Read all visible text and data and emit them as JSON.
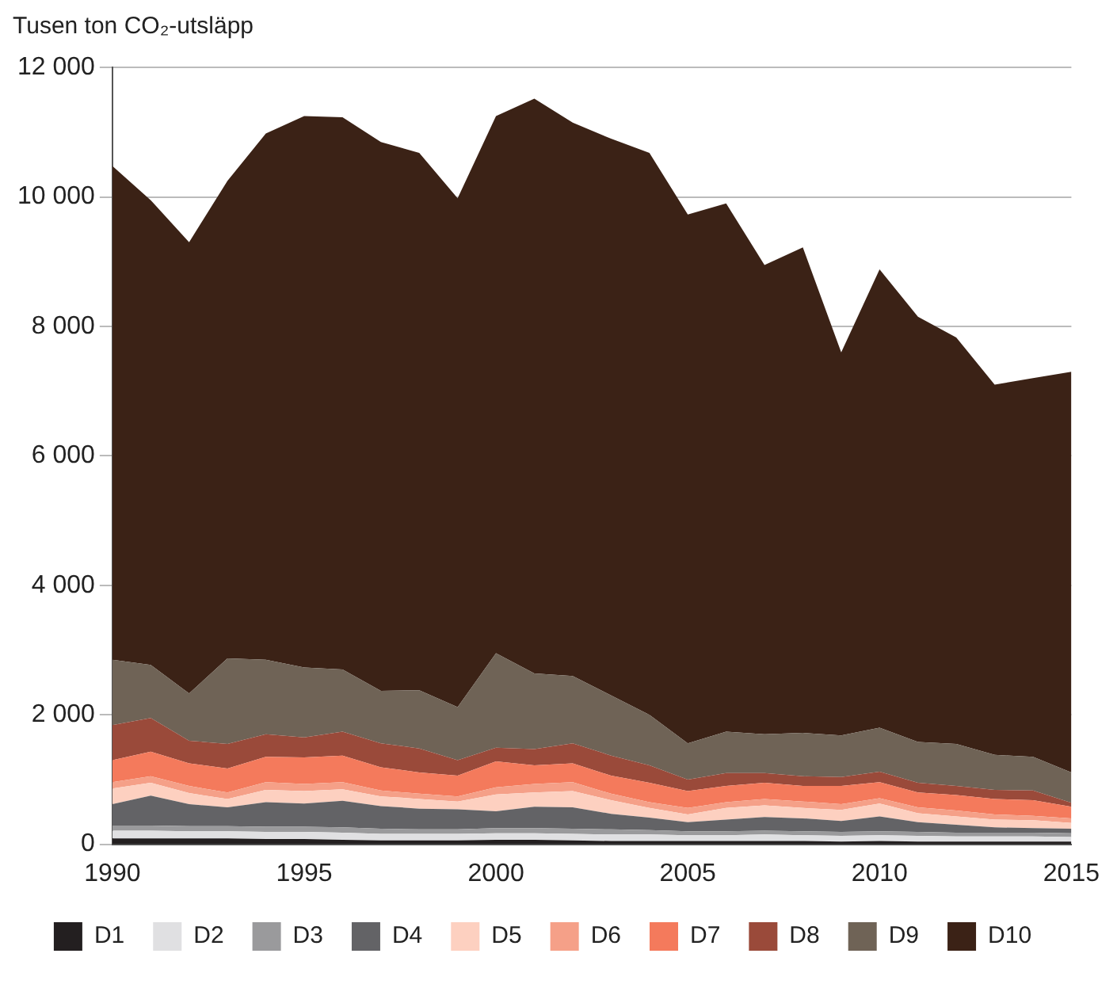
{
  "chart_data": {
    "type": "area",
    "ylabel": "Tusen ton CO₂-utsläpp",
    "stacked": true,
    "x": [
      1990,
      1991,
      1992,
      1993,
      1994,
      1995,
      1996,
      1997,
      1998,
      1999,
      2000,
      2001,
      2002,
      2003,
      2004,
      2005,
      2006,
      2007,
      2008,
      2009,
      2010,
      2011,
      2012,
      2013,
      2014,
      2015
    ],
    "series": [
      {
        "name": "D1",
        "color": "#231f20",
        "values": [
          90,
          90,
          90,
          90,
          80,
          80,
          70,
          60,
          60,
          60,
          70,
          70,
          60,
          50,
          50,
          50,
          50,
          50,
          50,
          40,
          50,
          40,
          40,
          40,
          40,
          40
        ]
      },
      {
        "name": "D2",
        "color": "#e0e0e2",
        "values": [
          120,
          120,
          110,
          110,
          110,
          110,
          110,
          100,
          100,
          100,
          100,
          100,
          100,
          100,
          100,
          90,
          90,
          100,
          90,
          90,
          90,
          90,
          80,
          80,
          80,
          70
        ]
      },
      {
        "name": "D3",
        "color": "#9a9a9c",
        "values": [
          80,
          80,
          80,
          80,
          80,
          80,
          80,
          80,
          70,
          70,
          80,
          80,
          80,
          80,
          70,
          60,
          60,
          60,
          60,
          60,
          60,
          60,
          60,
          60,
          60,
          60
        ]
      },
      {
        "name": "D4",
        "color": "#636366",
        "values": [
          330,
          460,
          340,
          290,
          380,
          360,
          410,
          350,
          320,
          310,
          260,
          330,
          330,
          240,
          190,
          140,
          180,
          210,
          200,
          170,
          230,
          150,
          120,
          80,
          70,
          70
        ]
      },
      {
        "name": "D5",
        "color": "#fdd0c0",
        "values": [
          240,
          200,
          170,
          130,
          190,
          190,
          180,
          150,
          150,
          120,
          260,
          220,
          250,
          210,
          150,
          120,
          180,
          180,
          160,
          170,
          200,
          140,
          130,
          120,
          120,
          90
        ]
      },
      {
        "name": "D6",
        "color": "#f5a088",
        "values": [
          100,
          100,
          110,
          100,
          120,
          110,
          110,
          90,
          80,
          80,
          110,
          130,
          140,
          100,
          90,
          100,
          90,
          100,
          100,
          90,
          80,
          90,
          90,
          80,
          70,
          70
        ]
      },
      {
        "name": "D7",
        "color": "#f47a5c",
        "values": [
          340,
          380,
          350,
          370,
          390,
          410,
          410,
          360,
          330,
          320,
          400,
          290,
          290,
          280,
          300,
          260,
          250,
          250,
          240,
          280,
          250,
          230,
          240,
          240,
          240,
          180
        ]
      },
      {
        "name": "D8",
        "color": "#9a4a3a",
        "values": [
          540,
          520,
          350,
          380,
          350,
          310,
          370,
          370,
          370,
          240,
          210,
          250,
          310,
          310,
          270,
          180,
          200,
          150,
          150,
          140,
          160,
          150,
          140,
          140,
          150,
          60
        ]
      },
      {
        "name": "D9",
        "color": "#6f6356",
        "values": [
          1010,
          820,
          730,
          1320,
          1150,
          1080,
          960,
          810,
          900,
          820,
          1460,
          1170,
          1040,
          930,
          780,
          560,
          640,
          600,
          670,
          640,
          680,
          630,
          650,
          540,
          520,
          470
        ]
      },
      {
        "name": "D10",
        "color": "#3b2216",
        "values": [
          7630,
          7180,
          6970,
          7380,
          8130,
          8520,
          8530,
          8480,
          8300,
          7860,
          8300,
          8880,
          8550,
          8600,
          8680,
          8170,
          8160,
          7250,
          7500,
          5920,
          7080,
          6570,
          6280,
          5720,
          5850,
          6190
        ]
      }
    ],
    "xlim": [
      1990,
      2015
    ],
    "xticks": [
      1990,
      1995,
      2000,
      2005,
      2010,
      2015
    ],
    "ylim": [
      0,
      12000
    ],
    "yticks": [
      0,
      {
        "value": 2000,
        "label": "2 000"
      },
      {
        "value": 4000,
        "label": "4 000"
      },
      {
        "value": 6000,
        "label": "6 000"
      },
      {
        "value": 8000,
        "label": "8 000"
      },
      {
        "value": 10000,
        "label": "10 000"
      },
      {
        "value": 12000,
        "label": "12 000"
      }
    ],
    "grid": "y",
    "legend": "bottom"
  }
}
